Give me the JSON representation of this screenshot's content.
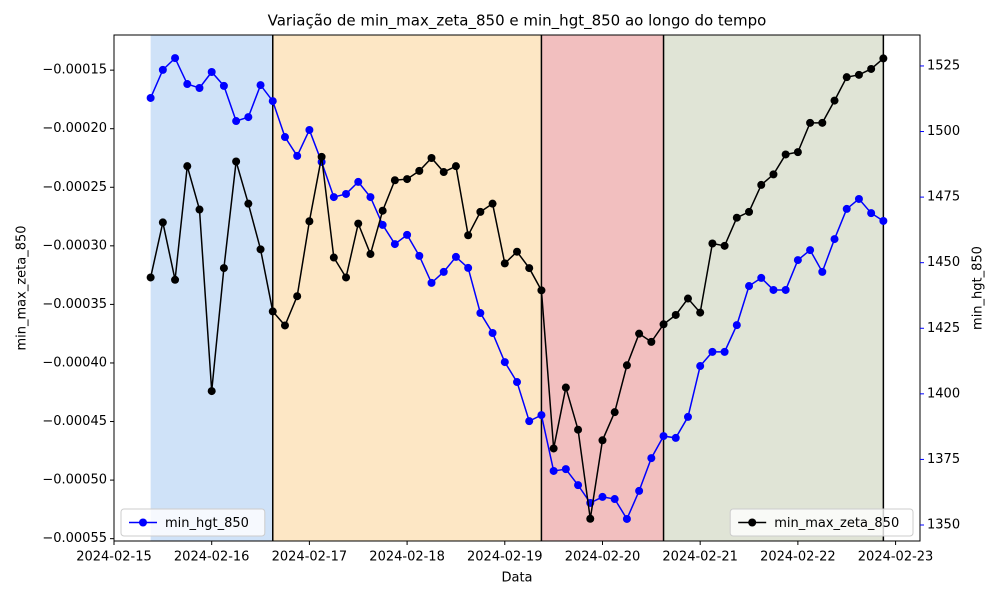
{
  "chart_data": {
    "type": "line",
    "title": "Variação de min_max_zeta_850 e min_hgt_850 ao longo do tempo",
    "x_label": "Data",
    "y_label": "min_max_zeta_850",
    "y2_label": "min_hgt_850",
    "y2_color": "#0000ff",
    "x_start": "2024-02-15T09:00",
    "x_step_hours": 3,
    "xlim": [
      "2024-02-15T00:00",
      "2024-02-23T06:00"
    ],
    "xticks": [
      "2024-02-15",
      "2024-02-16",
      "2024-02-17",
      "2024-02-18",
      "2024-02-19",
      "2024-02-20",
      "2024-02-21",
      "2024-02-22",
      "2024-02-23"
    ],
    "ylim": [
      -0.000552,
      -0.00012
    ],
    "yticks": [
      {
        "value": -0.00015,
        "label": "−0.00015"
      },
      {
        "value": -0.0002,
        "label": "−0.00020"
      },
      {
        "value": -0.00025,
        "label": "−0.00025"
      },
      {
        "value": -0.0003,
        "label": "−0.00030"
      },
      {
        "value": -0.00035,
        "label": "−0.00035"
      },
      {
        "value": -0.0004,
        "label": "−0.00040"
      },
      {
        "value": -0.00045,
        "label": "−0.00045"
      },
      {
        "value": -0.0005,
        "label": "−0.00050"
      },
      {
        "value": -0.00055,
        "label": "−0.00055"
      }
    ],
    "y2lim": [
      1343.9,
      1536.8
    ],
    "y2ticks": [
      1350,
      1375,
      1400,
      1425,
      1450,
      1475,
      1500,
      1525
    ],
    "regions": [
      {
        "start": "2024-02-15T09:00",
        "end": "2024-02-16T15:00",
        "color": "#cfe2f8"
      },
      {
        "start": "2024-02-16T15:00",
        "end": "2024-02-19T09:00",
        "color": "#fde7c5"
      },
      {
        "start": "2024-02-19T09:00",
        "end": "2024-02-20T15:00",
        "color": "#f2bfbf"
      },
      {
        "start": "2024-02-20T15:00",
        "end": "2024-02-22T21:00",
        "color": "#e0e4d6"
      }
    ],
    "vlines": [
      "2024-02-16T15:00",
      "2024-02-19T09:00",
      "2024-02-20T15:00",
      "2024-02-22T21:00"
    ],
    "series": [
      {
        "name": "min_hgt_850",
        "color": "#0000ff",
        "axis": "y2",
        "legend": "lower left",
        "values": [
          1512.8,
          1523.5,
          1528.0,
          1518.1,
          1516.6,
          1522.7,
          1517.4,
          1504.0,
          1505.5,
          1517.7,
          1511.6,
          1497.9,
          1490.7,
          1500.6,
          1488.4,
          1475.0,
          1476.2,
          1480.8,
          1475.0,
          1464.4,
          1457.1,
          1460.6,
          1452.6,
          1442.3,
          1446.5,
          1452.2,
          1448.0,
          1430.8,
          1423.2,
          1412.1,
          1404.5,
          1389.6,
          1391.9,
          1370.6,
          1371.3,
          1365.2,
          1358.4,
          1360.7,
          1359.9,
          1352.3,
          1363.0,
          1375.5,
          1383.9,
          1383.2,
          1391.2,
          1410.6,
          1416.0,
          1416.0,
          1426.2,
          1441.1,
          1444.2,
          1439.6,
          1439.6,
          1451.0,
          1454.8,
          1446.5,
          1459.0,
          1470.5,
          1474.3,
          1468.9,
          1465.9
        ]
      },
      {
        "name": "min_max_zeta_850",
        "color": "#000000",
        "axis": "y",
        "legend": "lower right",
        "values": [
          -0.000327,
          -0.00028,
          -0.000329,
          -0.000232,
          -0.000269,
          -0.000424,
          -0.000319,
          -0.000228,
          -0.000264,
          -0.000303,
          -0.000356,
          -0.000368,
          -0.000343,
          -0.000279,
          -0.000224,
          -0.00031,
          -0.000327,
          -0.000281,
          -0.000307,
          -0.00027,
          -0.000244,
          -0.000243,
          -0.000236,
          -0.000225,
          -0.000237,
          -0.000232,
          -0.000291,
          -0.000271,
          -0.000264,
          -0.000315,
          -0.000305,
          -0.000319,
          -0.000338,
          -0.000473,
          -0.000421,
          -0.000457,
          -0.000533,
          -0.000466,
          -0.000442,
          -0.000402,
          -0.000375,
          -0.000382,
          -0.000367,
          -0.000359,
          -0.000345,
          -0.000357,
          -0.000298,
          -0.0003,
          -0.000276,
          -0.000271,
          -0.000248,
          -0.000239,
          -0.000222,
          -0.00022,
          -0.000195,
          -0.000195,
          -0.000176,
          -0.000156,
          -0.000154,
          -0.000149,
          -0.00014
        ]
      }
    ]
  }
}
